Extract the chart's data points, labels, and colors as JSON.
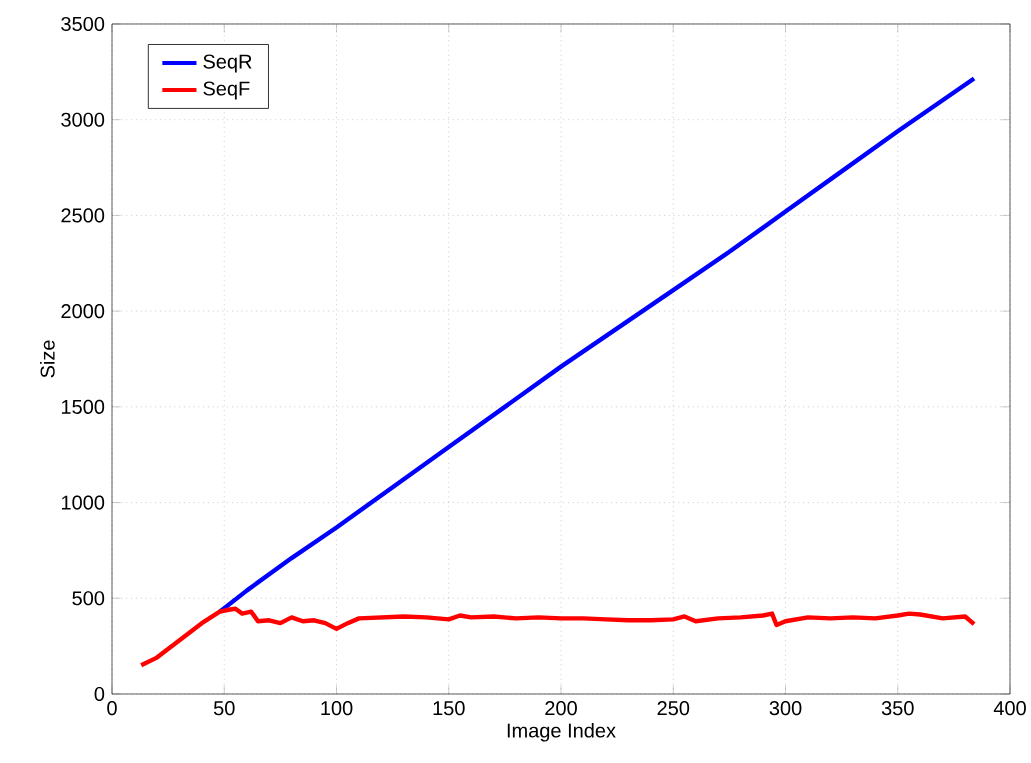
{
  "chart_data": {
    "type": "line",
    "xlabel": "Image Index",
    "ylabel": "Size",
    "xlim": [
      0,
      400
    ],
    "xticks": [
      0,
      50,
      100,
      150,
      200,
      250,
      300,
      350,
      400
    ],
    "ylim": [
      0,
      3500
    ],
    "yticks": [
      0,
      500,
      1000,
      1500,
      2000,
      2500,
      3000,
      3500
    ],
    "grid": true,
    "legend": "top left",
    "line_style": "solid",
    "marker": "none",
    "series": [
      {
        "name": "SeqR",
        "color": "#0000ff",
        "x": [
          48,
          60,
          80,
          100,
          125,
          150,
          175,
          200,
          225,
          250,
          275,
          300,
          325,
          350,
          384
        ],
        "values": [
          430,
          540,
          710,
          870,
          1080,
          1290,
          1500,
          1710,
          1910,
          2110,
          2310,
          2520,
          2730,
          2940,
          3215
        ]
      },
      {
        "name": "SeqF",
        "color": "#ff0000",
        "x": [
          13,
          20,
          30,
          40,
          48,
          52,
          55,
          58,
          62,
          65,
          70,
          75,
          80,
          85,
          90,
          95,
          100,
          105,
          110,
          120,
          130,
          140,
          150,
          155,
          160,
          170,
          180,
          190,
          200,
          210,
          220,
          230,
          240,
          250,
          255,
          260,
          270,
          280,
          290,
          294,
          296,
          300,
          310,
          320,
          330,
          340,
          350,
          355,
          360,
          370,
          380,
          384
        ],
        "values": [
          150,
          190,
          280,
          370,
          430,
          440,
          445,
          420,
          430,
          380,
          385,
          370,
          400,
          380,
          385,
          370,
          340,
          370,
          395,
          400,
          405,
          400,
          390,
          410,
          400,
          405,
          395,
          400,
          395,
          395,
          390,
          385,
          385,
          390,
          405,
          380,
          395,
          400,
          410,
          420,
          360,
          380,
          400,
          395,
          400,
          395,
          410,
          420,
          415,
          395,
          405,
          365
        ]
      }
    ]
  }
}
